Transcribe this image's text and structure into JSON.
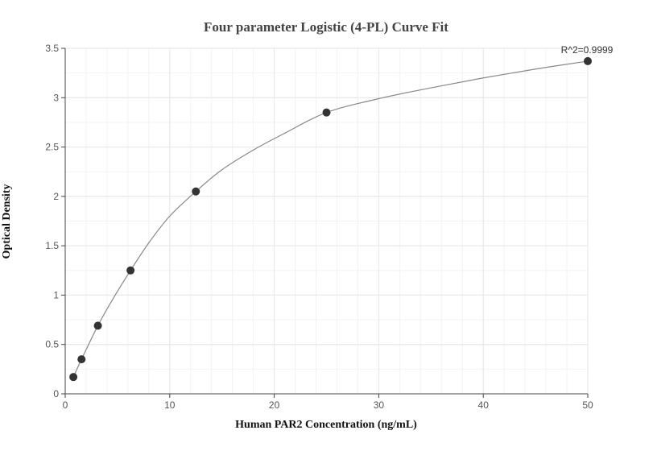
{
  "chart_data": {
    "type": "scatter",
    "title": "Four parameter Logistic (4-PL) Curve Fit",
    "xlabel": "Human PAR2 Concentration (ng/mL)",
    "ylabel": "Optical Density",
    "xlim": [
      0,
      50
    ],
    "ylim": [
      0,
      3.5
    ],
    "x_ticks": [
      0,
      10,
      20,
      30,
      40,
      50
    ],
    "y_ticks": [
      0,
      0.5,
      1,
      1.5,
      2,
      2.5,
      3,
      3.5
    ],
    "x_tick_labels": [
      "0",
      "10",
      "20",
      "30",
      "40",
      "50"
    ],
    "y_tick_labels": [
      "0",
      "0.5",
      "1",
      "1.5",
      "2",
      "2.5",
      "3",
      "3.5"
    ],
    "grid": true,
    "points": [
      {
        "x": 0.78,
        "y": 0.17
      },
      {
        "x": 1.56,
        "y": 0.35
      },
      {
        "x": 3.125,
        "y": 0.69
      },
      {
        "x": 6.25,
        "y": 1.25
      },
      {
        "x": 12.5,
        "y": 2.05
      },
      {
        "x": 25,
        "y": 2.85
      },
      {
        "x": 50,
        "y": 3.37
      }
    ],
    "fit": {
      "model": "4PL",
      "curve": [
        [
          0.78,
          0.17
        ],
        [
          1.56,
          0.35
        ],
        [
          3.125,
          0.69
        ],
        [
          4.5,
          0.95
        ],
        [
          6.25,
          1.25
        ],
        [
          8,
          1.53
        ],
        [
          10,
          1.8
        ],
        [
          12.5,
          2.05
        ],
        [
          15,
          2.27
        ],
        [
          18,
          2.47
        ],
        [
          21,
          2.64
        ],
        [
          25,
          2.85
        ],
        [
          30,
          2.99
        ],
        [
          35,
          3.1
        ],
        [
          40,
          3.2
        ],
        [
          45,
          3.29
        ],
        [
          50,
          3.37
        ]
      ]
    },
    "annotation": "R^2=0.9999",
    "colors": {
      "point": "#333333",
      "curve": "#888888",
      "grid": "#e6e6e6",
      "axis": "#444444"
    }
  }
}
